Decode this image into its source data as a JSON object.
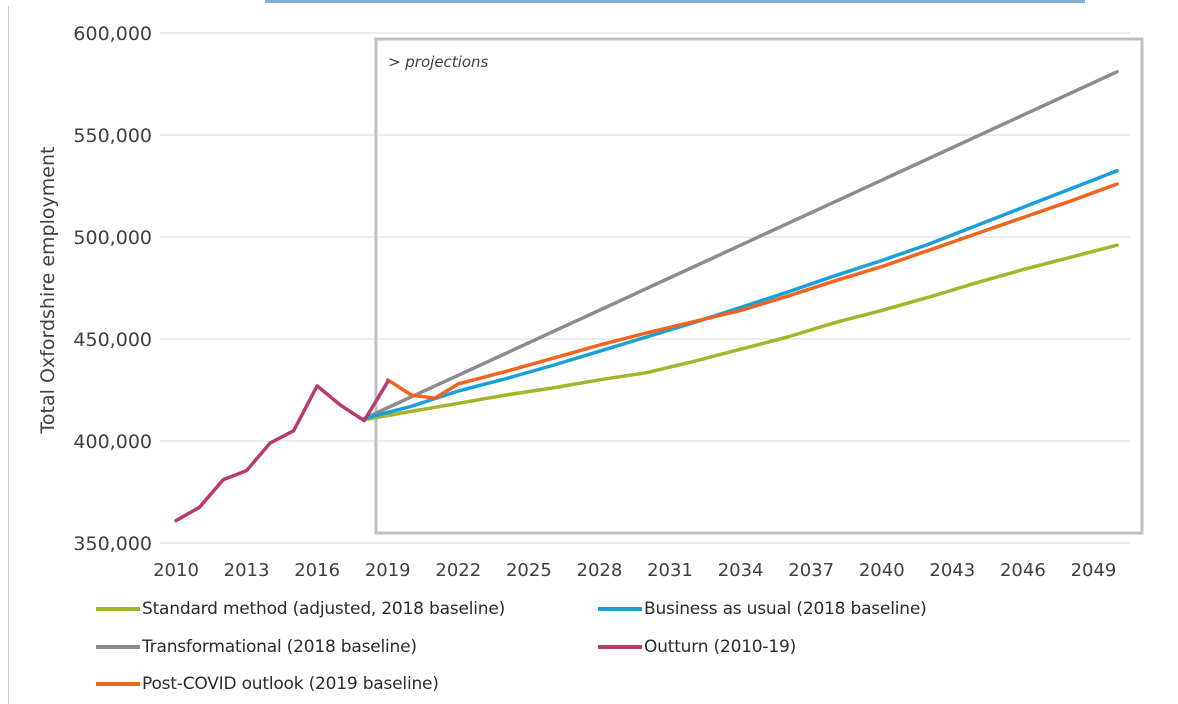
{
  "chart_data": {
    "type": "line",
    "title": "",
    "xlabel": "",
    "ylabel": "Total Oxfordshire employment",
    "ylim": [
      350000,
      600000
    ],
    "y_ticks": [
      "350,000",
      "400,000",
      "450,000",
      "500,000",
      "550,000",
      "600,000"
    ],
    "y_tick_values": [
      350000,
      400000,
      450000,
      500000,
      550000,
      600000
    ],
    "x_ticks": [
      "2010",
      "2013",
      "2016",
      "2019",
      "2022",
      "2025",
      "2028",
      "2031",
      "2034",
      "2037",
      "2040",
      "2043",
      "2046",
      "2049"
    ],
    "xlim": [
      2010,
      2050
    ],
    "grid": "horizontal",
    "legend_position": "bottom",
    "annotation": "> projections",
    "projection_start_year": 2018.5,
    "series": [
      {
        "name": "Standard method (adjusted, 2018 baseline)",
        "color": "#a4b52b",
        "x": [
          2018,
          2020,
          2022,
          2024,
          2026,
          2028,
          2030,
          2032,
          2034,
          2036,
          2038,
          2040,
          2042,
          2044,
          2046,
          2048,
          2050
        ],
        "y": [
          410500,
          414500,
          418500,
          422500,
          426000,
          430000,
          433500,
          439000,
          445000,
          451000,
          458000,
          464000,
          470500,
          477500,
          484000,
          490000,
          496000
        ]
      },
      {
        "name": "Business as usual (2018 baseline)",
        "color": "#1aa0d8",
        "x": [
          2018,
          2020,
          2022,
          2024,
          2026,
          2028,
          2030,
          2032,
          2034,
          2036,
          2038,
          2040,
          2042,
          2044,
          2046,
          2048,
          2050
        ],
        "y": [
          411000,
          417000,
          424500,
          430500,
          437000,
          444000,
          451000,
          458000,
          465500,
          473000,
          481000,
          488500,
          496500,
          505500,
          514500,
          523500,
          532500
        ]
      },
      {
        "name": "Transformational (2018 baseline)",
        "color": "#8c8c8c",
        "x": [
          2018,
          2050
        ],
        "y": [
          411000,
          581000
        ]
      },
      {
        "name": "Outturn (2010-19)",
        "color": "#b83b6e",
        "x": [
          2010,
          2011,
          2012,
          2013,
          2014,
          2015,
          2016,
          2017,
          2018,
          2019
        ],
        "y": [
          361000,
          367500,
          381000,
          385500,
          399000,
          405000,
          427000,
          417500,
          410000,
          429000
        ]
      },
      {
        "name": "Post-COVID outlook (2019 baseline)",
        "color": "#f0641e",
        "x": [
          2019,
          2020,
          2021,
          2022,
          2024,
          2026,
          2028,
          2030,
          2032,
          2034,
          2036,
          2038,
          2040,
          2042,
          2044,
          2046,
          2048,
          2050
        ],
        "y": [
          430000,
          422500,
          421000,
          428000,
          434000,
          440500,
          447000,
          453000,
          458500,
          464000,
          471000,
          478500,
          485500,
          493500,
          501500,
          509500,
          517500,
          526000
        ]
      }
    ]
  },
  "colors": {
    "grid": "#d9d9d9",
    "axis_text": "#404040",
    "projection_box": "#bfbfbf",
    "title_strip": "#1f6fb4"
  }
}
